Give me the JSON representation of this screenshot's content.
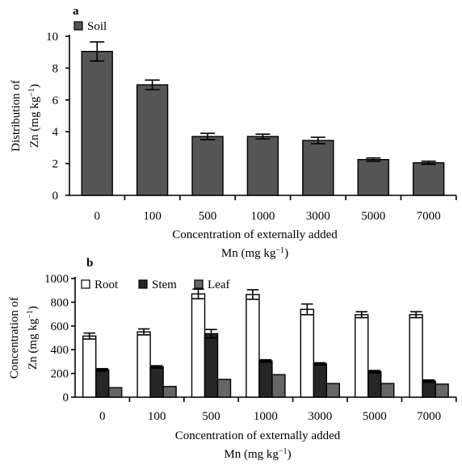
{
  "chart_data": [
    {
      "panel": "a",
      "type": "bar",
      "categories": [
        "0",
        "100",
        "500",
        "1000",
        "3000",
        "5000",
        "7000"
      ],
      "series": [
        {
          "name": "Soil",
          "values": [
            9.05,
            6.95,
            3.7,
            3.7,
            3.45,
            2.25,
            2.05
          ],
          "errors": [
            0.6,
            0.3,
            0.2,
            0.15,
            0.2,
            0.1,
            0.1
          ],
          "color": "#555555"
        }
      ],
      "ylim": [
        0,
        10
      ],
      "yticks": [
        0,
        2,
        4,
        6,
        8,
        10
      ],
      "ylabel_line1": "Distribution of",
      "ylabel_line2": "Zn (mg kg",
      "ylabel_sup": "−1",
      "ylabel_end": ")",
      "xlabel_line1": "Concentration of externally added",
      "xlabel_line2": "Mn (mg kg",
      "xlabel_sup": "−1",
      "xlabel_end": ")",
      "legend": "top-left",
      "grid": false
    },
    {
      "panel": "b",
      "type": "bar",
      "categories": [
        "0",
        "100",
        "500",
        "1000",
        "3000",
        "5000",
        "7000"
      ],
      "series": [
        {
          "name": "Root",
          "values": [
            515,
            550,
            870,
            865,
            740,
            695,
            695
          ],
          "errors": [
            25,
            25,
            40,
            40,
            45,
            25,
            25
          ],
          "color": "#ffffff"
        },
        {
          "name": "Stem",
          "values": [
            230,
            255,
            535,
            305,
            280,
            215,
            135
          ],
          "errors": [
            10,
            10,
            35,
            10,
            10,
            10,
            10
          ],
          "color": "#262626"
        },
        {
          "name": "Leaf",
          "values": [
            80,
            90,
            150,
            190,
            115,
            115,
            110
          ],
          "errors": [
            0,
            0,
            0,
            0,
            0,
            0,
            0
          ],
          "color": "#666666"
        }
      ],
      "ylim": [
        0,
        1000
      ],
      "yticks": [
        0,
        200,
        400,
        600,
        800,
        1000
      ],
      "ylabel_line1": "Concentration of",
      "ylabel_line2": "Zn (mg kg",
      "ylabel_sup": "−1",
      "ylabel_end": ")",
      "xlabel_line1": "Concentration of externally added",
      "xlabel_line2": "Mn (mg kg",
      "xlabel_sup": "−1",
      "xlabel_end": ")",
      "legend": "top",
      "grid": false
    }
  ]
}
